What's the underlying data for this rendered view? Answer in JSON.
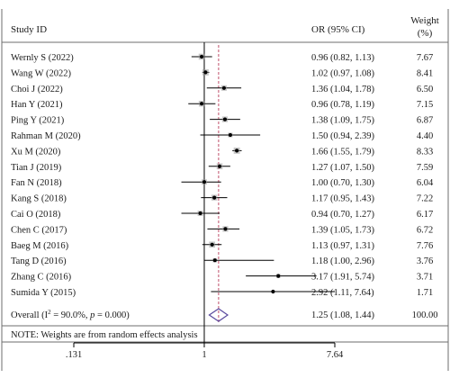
{
  "chart_data": {
    "type": "forest",
    "x_scale": "log",
    "headers": {
      "study": "Study ID",
      "estimate": "OR (95% CI)",
      "weight_line1": "Weight",
      "weight_line2": "(%)"
    },
    "studies": [
      {
        "label": "Wernly S (2022)",
        "or": 0.96,
        "lo": 0.82,
        "hi": 1.13,
        "ci_text": "0.96 (0.82, 1.13)",
        "weight": 7.67,
        "weight_text": "7.67"
      },
      {
        "label": "Wang W (2022)",
        "or": 1.02,
        "lo": 0.97,
        "hi": 1.08,
        "ci_text": "1.02 (0.97, 1.08)",
        "weight": 8.41,
        "weight_text": "8.41"
      },
      {
        "label": "Choi J (2022)",
        "or": 1.36,
        "lo": 1.04,
        "hi": 1.78,
        "ci_text": "1.36 (1.04, 1.78)",
        "weight": 6.5,
        "weight_text": "6.50"
      },
      {
        "label": "Han Y (2021)",
        "or": 0.96,
        "lo": 0.78,
        "hi": 1.19,
        "ci_text": "0.96 (0.78, 1.19)",
        "weight": 7.15,
        "weight_text": "7.15"
      },
      {
        "label": "Ping Y (2021)",
        "or": 1.38,
        "lo": 1.09,
        "hi": 1.75,
        "ci_text": "1.38 (1.09, 1.75)",
        "weight": 6.87,
        "weight_text": "6.87"
      },
      {
        "label": "Rahman M (2020)",
        "or": 1.5,
        "lo": 0.94,
        "hi": 2.39,
        "ci_text": "1.50 (0.94, 2.39)",
        "weight": 4.4,
        "weight_text": "4.40"
      },
      {
        "label": "Xu M (2020)",
        "or": 1.66,
        "lo": 1.55,
        "hi": 1.79,
        "ci_text": "1.66 (1.55, 1.79)",
        "weight": 8.33,
        "weight_text": "8.33"
      },
      {
        "label": "Tian J (2019)",
        "or": 1.27,
        "lo": 1.07,
        "hi": 1.5,
        "ci_text": "1.27 (1.07, 1.50)",
        "weight": 7.59,
        "weight_text": "7.59"
      },
      {
        "label": "Fan N (2018)",
        "or": 1.0,
        "lo": 0.7,
        "hi": 1.3,
        "ci_text": "1.00 (0.70, 1.30)",
        "weight": 6.04,
        "weight_text": "6.04"
      },
      {
        "label": "Kang S (2018)",
        "or": 1.17,
        "lo": 0.95,
        "hi": 1.43,
        "ci_text": "1.17 (0.95, 1.43)",
        "weight": 7.22,
        "weight_text": "7.22"
      },
      {
        "label": "Cai O (2018)",
        "or": 0.94,
        "lo": 0.7,
        "hi": 1.27,
        "ci_text": "0.94 (0.70, 1.27)",
        "weight": 6.17,
        "weight_text": "6.17"
      },
      {
        "label": "Chen C (2017)",
        "or": 1.39,
        "lo": 1.05,
        "hi": 1.73,
        "ci_text": "1.39 (1.05, 1.73)",
        "weight": 6.72,
        "weight_text": "6.72"
      },
      {
        "label": "Baeg M (2016)",
        "or": 1.13,
        "lo": 0.97,
        "hi": 1.31,
        "ci_text": "1.13 (0.97, 1.31)",
        "weight": 7.76,
        "weight_text": "7.76"
      },
      {
        "label": "Tang D (2016)",
        "or": 1.18,
        "lo": 1.0,
        "hi": 2.96,
        "ci_text": "1.18 (1.00, 2.96)",
        "weight": 3.76,
        "weight_text": "3.76"
      },
      {
        "label": "Zhang C (2016)",
        "or": 3.17,
        "lo": 1.91,
        "hi": 5.74,
        "ci_text": "3.17 (1.91, 5.74)",
        "weight": 3.71,
        "weight_text": "3.71"
      },
      {
        "label": "Sumida Y (2015)",
        "or": 2.92,
        "lo": 1.11,
        "hi": 7.64,
        "ci_text": "2.92 (1.11, 7.64)",
        "weight": 1.71,
        "weight_text": "1.71"
      }
    ],
    "overall": {
      "label_prefix": "Overall (I",
      "label_sup": "2",
      "label_mid": " = 90.0%, ",
      "label_p": "p",
      "label_end": " = 0.000)",
      "or": 1.25,
      "lo": 1.08,
      "hi": 1.44,
      "ci_text": "1.25 (1.08, 1.44)",
      "weight_text": "100.00"
    },
    "note": "NOTE: Weights are from random effects analysis",
    "x_ticks": [
      {
        "value": 0.131,
        "label": ".131"
      },
      {
        "value": 1,
        "label": "1"
      },
      {
        "value": 7.64,
        "label": "7.64"
      }
    ],
    "xlim": [
      0.131,
      7.64
    ],
    "null_line": 1,
    "colors": {
      "ci_line": "#000000",
      "weight_box": "#9b9b9b",
      "point": "#000000",
      "overall_diamond": "#5a4a9e",
      "overall_line": "#c0506a",
      "frame": "#6e6e6e"
    }
  }
}
